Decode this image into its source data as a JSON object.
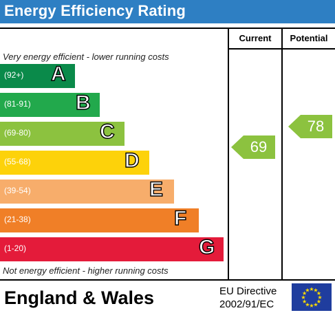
{
  "header": {
    "title": "Energy Efficiency Rating"
  },
  "columns": {
    "current": "Current",
    "potential": "Potential"
  },
  "notes": {
    "top": "Very energy efficient - lower running costs",
    "bottom": "Not energy efficient - higher running costs"
  },
  "bands": [
    {
      "range": "(92+)",
      "letter": "A",
      "color": "#0a8a4a"
    },
    {
      "range": "(81-91)",
      "letter": "B",
      "color": "#22a94c"
    },
    {
      "range": "(69-80)",
      "letter": "C",
      "color": "#8cc23f"
    },
    {
      "range": "(55-68)",
      "letter": "D",
      "color": "#fdd20a"
    },
    {
      "range": "(39-54)",
      "letter": "E",
      "color": "#f7ad6b"
    },
    {
      "range": "(21-38)",
      "letter": "F",
      "color": "#f07f27"
    },
    {
      "range": "(1-20)",
      "letter": "G",
      "color": "#e41b3a"
    }
  ],
  "ratings": {
    "current": {
      "value": "69",
      "color": "#8cc23f"
    },
    "potential": {
      "value": "78",
      "color": "#8cc23f"
    }
  },
  "footer": {
    "region": "England & Wales",
    "directive_line1": "EU Directive",
    "directive_line2": "2002/91/EC",
    "flag_icon": "eu-flag-icon"
  }
}
